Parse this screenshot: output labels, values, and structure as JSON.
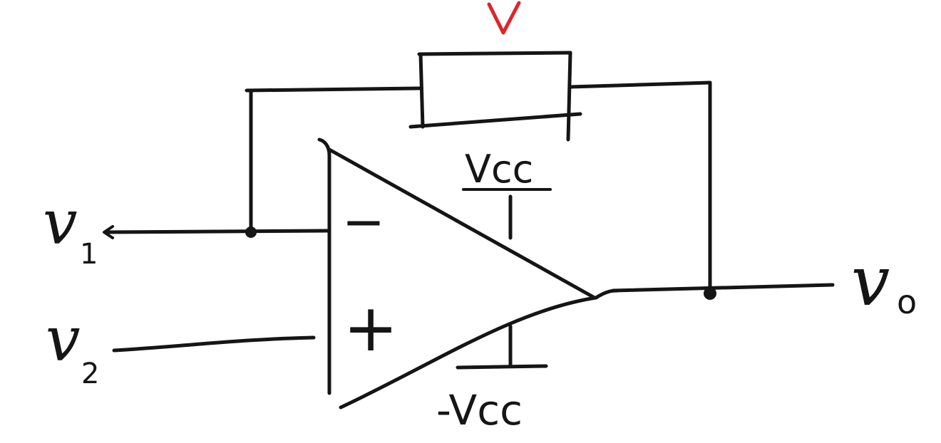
{
  "labels": {
    "v1": "v",
    "v1_sub": "1",
    "v2": "v",
    "v2_sub": "2",
    "vo": "v",
    "vo_sub": "o",
    "vcc": "Vcc",
    "neg_vcc": "-Vcc",
    "inv_sign": "−",
    "noninv_sign": "+"
  },
  "colors": {
    "ink": "#151515",
    "marker": "#e0242a"
  },
  "icons": {
    "marker": "down-arrow-icon"
  }
}
